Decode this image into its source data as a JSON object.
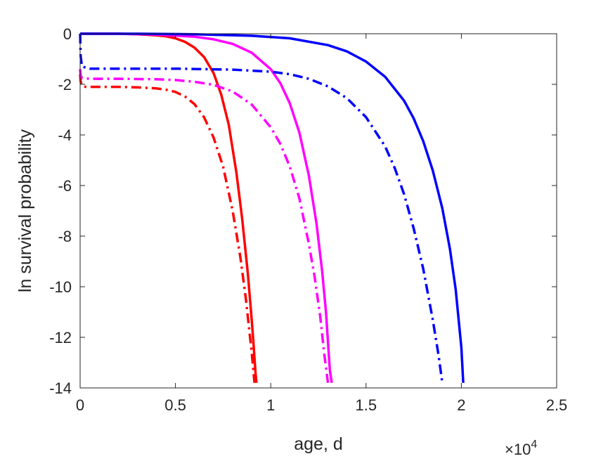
{
  "chart_data": {
    "type": "line",
    "title": "",
    "xlabel": "age, d",
    "ylabel": "ln survival probability",
    "x_exponent_label": "×10",
    "x_exponent_power": "4",
    "xlim": [
      0,
      25000
    ],
    "ylim": [
      -14,
      0
    ],
    "x_ticks": [
      0,
      5000,
      10000,
      15000,
      20000,
      25000
    ],
    "x_tick_labels": [
      "0",
      "0.5",
      "1",
      "1.5",
      "2",
      "2.5"
    ],
    "y_ticks": [
      0,
      -2,
      -4,
      -6,
      -8,
      -10,
      -12,
      -14
    ],
    "y_tick_labels": [
      "0",
      "-2",
      "-4",
      "-6",
      "-8",
      "-10",
      "-12",
      "-14"
    ],
    "grid": false,
    "series": [
      {
        "color": "#ff0000",
        "style": "solid",
        "x": [
          0,
          1000,
          2000,
          3000,
          4000,
          4500,
          5000,
          5500,
          6000,
          6500,
          7000,
          7400,
          7800,
          8200,
          8500,
          8800,
          9000,
          9100,
          9200,
          9250
        ],
        "y": [
          0,
          0,
          0,
          -0.02,
          -0.06,
          -0.1,
          -0.18,
          -0.32,
          -0.55,
          -0.92,
          -1.55,
          -2.4,
          -3.6,
          -5.5,
          -7.3,
          -9.5,
          -11.3,
          -12.3,
          -13.4,
          -13.8
        ]
      },
      {
        "color": "#ff00ff",
        "style": "solid",
        "x": [
          0,
          2000,
          4000,
          6000,
          7000,
          8000,
          9000,
          10000,
          10500,
          11000,
          11500,
          12000,
          12400,
          12700,
          12900,
          13100,
          13200
        ],
        "y": [
          0,
          0,
          -0.03,
          -0.12,
          -0.22,
          -0.4,
          -0.75,
          -1.4,
          -1.95,
          -2.75,
          -3.9,
          -5.6,
          -7.5,
          -9.4,
          -11.0,
          -13.3,
          -13.8
        ]
      },
      {
        "color": "#0000ff",
        "style": "solid",
        "x": [
          0,
          3000,
          6000,
          9000,
          11000,
          13000,
          14000,
          15000,
          16000,
          17000,
          17500,
          18000,
          18500,
          19000,
          19400,
          19700,
          20000,
          20100
        ],
        "y": [
          0,
          0,
          -0.02,
          -0.08,
          -0.18,
          -0.45,
          -0.7,
          -1.1,
          -1.7,
          -2.65,
          -3.35,
          -4.25,
          -5.4,
          -6.9,
          -8.5,
          -10.1,
          -12.4,
          -13.8
        ]
      },
      {
        "color": "#ff0000",
        "style": "dashdot",
        "x": [
          0,
          30,
          100,
          300,
          1000,
          2000,
          3000,
          4000,
          4500,
          5000,
          5500,
          6000,
          6500,
          7000,
          7500,
          8000,
          8400,
          8700,
          9000,
          9150
        ],
        "y": [
          -1.6,
          -1.9,
          -2.05,
          -2.1,
          -2.1,
          -2.1,
          -2.12,
          -2.16,
          -2.21,
          -2.3,
          -2.48,
          -2.78,
          -3.3,
          -4.1,
          -5.25,
          -7.0,
          -8.8,
          -10.5,
          -12.6,
          -13.8
        ]
      },
      {
        "color": "#ff00ff",
        "style": "dashdot",
        "x": [
          0,
          30,
          100,
          500,
          2000,
          4000,
          5000,
          6000,
          7000,
          8000,
          9000,
          10000,
          10500,
          11000,
          11500,
          12000,
          12300,
          12600,
          12800,
          13000
        ],
        "y": [
          -1.4,
          -1.65,
          -1.75,
          -1.78,
          -1.78,
          -1.8,
          -1.83,
          -1.9,
          -2.02,
          -2.28,
          -2.8,
          -3.7,
          -4.35,
          -5.25,
          -6.5,
          -8.3,
          -9.6,
          -11.2,
          -12.6,
          -13.8
        ]
      },
      {
        "color": "#0000ff",
        "style": "dashdot",
        "x": [
          0,
          30,
          100,
          500,
          2000,
          5000,
          8000,
          10000,
          11000,
          12000,
          13000,
          14000,
          15000,
          16000,
          16500,
          17000,
          17500,
          18000,
          18500,
          18800,
          19000
        ],
        "y": [
          0,
          -0.9,
          -1.3,
          -1.38,
          -1.38,
          -1.38,
          -1.42,
          -1.5,
          -1.6,
          -1.78,
          -2.08,
          -2.55,
          -3.3,
          -4.45,
          -5.3,
          -6.35,
          -7.7,
          -9.3,
          -11.3,
          -12.7,
          -13.8
        ]
      }
    ]
  }
}
